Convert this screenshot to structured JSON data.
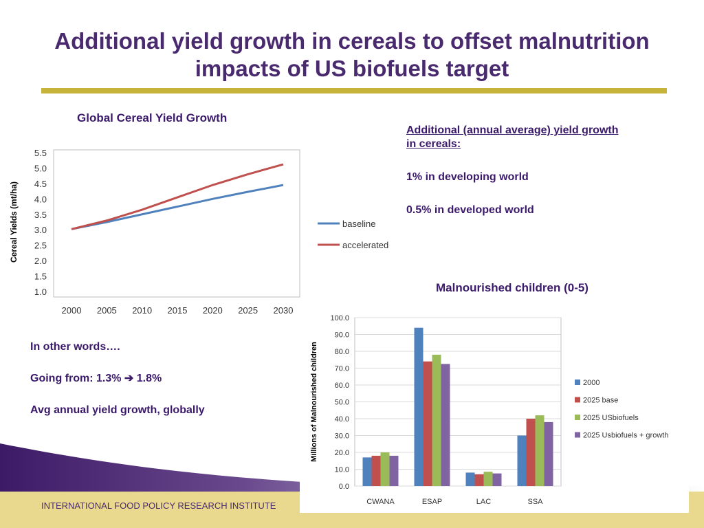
{
  "slide": {
    "title_line1": "Additional yield growth in cereals to offset malnutrition",
    "title_line2": "impacts of US biofuels target",
    "footer": "INTERNATIONAL FOOD POLICY RESEARCH INSTITUTE",
    "right_text": {
      "heading_line1": "Additional  (annual average) yield growth",
      "heading_line2": "in cereals:",
      "item1": "1% in developing world",
      "item2": "0.5% in developed world"
    },
    "left_text": {
      "line1": "In other words….",
      "line2_prefix": "Going from:  1.3%  ",
      "line2_arrow": "➔",
      "line2_suffix": " 1.8%",
      "line3": "Avg annual  yield growth, globally"
    },
    "colors": {
      "title": "#4a2a6e",
      "rule": "#c6b33a",
      "baseline": "#4f81bd",
      "accelerated": "#c0504d",
      "footer_band": "#e8d98e"
    }
  },
  "chart_data": [
    {
      "type": "line",
      "title": "Global Cereal Yield Growth",
      "ylabel": "Cereal Yields  (mt/ha)",
      "xlabel": "",
      "x": [
        "2000",
        "2005",
        "2010",
        "2015",
        "2020",
        "2025",
        "2030"
      ],
      "ylim": [
        1.0,
        5.5
      ],
      "yticks": [
        "1.0",
        "1.5",
        "2.0",
        "2.5",
        "3.0",
        "3.5",
        "4.0",
        "4.5",
        "5.0",
        "5.5"
      ],
      "grid": false,
      "legend": "right",
      "series": [
        {
          "name": "baseline",
          "color": "#4f81bd",
          "values": [
            3.02,
            3.25,
            3.5,
            3.75,
            4.0,
            4.23,
            4.45
          ]
        },
        {
          "name": "accelerated",
          "color": "#c0504d",
          "values": [
            3.02,
            3.3,
            3.65,
            4.05,
            4.45,
            4.8,
            5.12
          ]
        }
      ]
    },
    {
      "type": "bar",
      "title": "Malnourished children (0-5)",
      "ylabel": "Millions of Malnourished  children",
      "xlabel": "",
      "categories": [
        "CWANA",
        "ESAP",
        "LAC",
        "SSA"
      ],
      "ylim": [
        0,
        100
      ],
      "yticks": [
        "0.0",
        "10.0",
        "20.0",
        "30.0",
        "40.0",
        "50.0",
        "60.0",
        "70.0",
        "80.0",
        "90.0",
        "100.0"
      ],
      "grid": true,
      "legend": "right",
      "series": [
        {
          "name": "2000",
          "color": "#4f81bd",
          "values": [
            17,
            94,
            8,
            30
          ]
        },
        {
          "name": "2025 base",
          "color": "#c0504d",
          "values": [
            18,
            74,
            7,
            40
          ]
        },
        {
          "name": "2025 USbiofuels",
          "color": "#9bbb59",
          "values": [
            20,
            78,
            8.5,
            42
          ]
        },
        {
          "name": "2025 Usbiofuels + growth",
          "color": "#8064a2",
          "values": [
            18,
            72.5,
            7.5,
            38
          ]
        }
      ]
    }
  ]
}
